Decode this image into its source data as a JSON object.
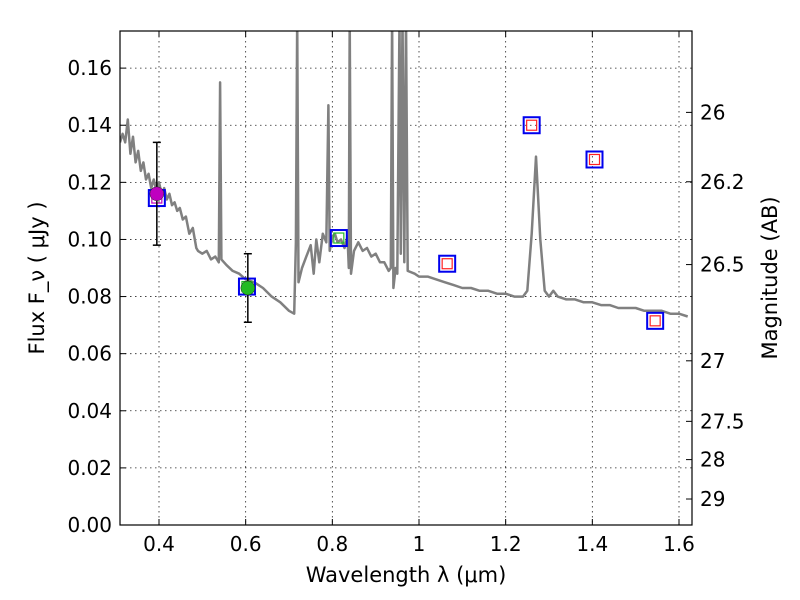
{
  "chart_data": {
    "type": "scatter",
    "title": "",
    "xlabel": "Wavelength  λ (μm)",
    "ylabel": "Flux  F_ν  ( μJy )",
    "ylabel_right": "Magnitude (AB)",
    "xlim": [
      0.31,
      1.63
    ],
    "ylim": [
      0.0,
      0.173
    ],
    "grid": true,
    "x_ticks": [
      "0.4",
      "0.6",
      "0.8",
      "1",
      "1.2",
      "1.4",
      "1.6"
    ],
    "y_ticks": [
      "0.00",
      "0.02",
      "0.04",
      "0.06",
      "0.08",
      "0.10",
      "0.12",
      "0.14",
      "0.16"
    ],
    "right_ticks": [
      {
        "label": "26",
        "flux": 0.1445
      },
      {
        "label": "26.2",
        "flux": 0.1202
      },
      {
        "label": "26.5",
        "flux": 0.0912
      },
      {
        "label": "27",
        "flux": 0.0575
      },
      {
        "label": "27.5",
        "flux": 0.0363
      },
      {
        "label": "28",
        "flux": 0.0229
      },
      {
        "label": "29",
        "flux": 0.0091
      }
    ],
    "observed": [
      {
        "x": 0.395,
        "y": 0.116,
        "err": 0.018,
        "color": "#bf00bf"
      },
      {
        "x": 0.605,
        "y": 0.083,
        "err": 0.012,
        "color": "#22bb22"
      }
    ],
    "model_boxes": [
      {
        "x": 0.395,
        "y": 0.1145,
        "inner": "#bf00bf"
      },
      {
        "x": 0.603,
        "y": 0.0835,
        "inner": "#22bb22"
      },
      {
        "x": 0.815,
        "y": 0.1005,
        "inner": "#22bb22"
      },
      {
        "x": 1.065,
        "y": 0.0915,
        "inner": "#ff2222"
      },
      {
        "x": 1.26,
        "y": 0.14,
        "inner": "#ff2222"
      },
      {
        "x": 1.405,
        "y": 0.128,
        "inner": "#ff2222"
      },
      {
        "x": 1.545,
        "y": 0.0715,
        "inner": "#ff2222"
      }
    ],
    "sed": [
      [
        0.31,
        0.134
      ],
      [
        0.316,
        0.137
      ],
      [
        0.322,
        0.134
      ],
      [
        0.328,
        0.142
      ],
      [
        0.334,
        0.13
      ],
      [
        0.34,
        0.136
      ],
      [
        0.346,
        0.127
      ],
      [
        0.352,
        0.131
      ],
      [
        0.358,
        0.124
      ],
      [
        0.364,
        0.127
      ],
      [
        0.37,
        0.121
      ],
      [
        0.376,
        0.123
      ],
      [
        0.382,
        0.118
      ],
      [
        0.388,
        0.121
      ],
      [
        0.394,
        0.117
      ],
      [
        0.4,
        0.12
      ],
      [
        0.406,
        0.116
      ],
      [
        0.412,
        0.118
      ],
      [
        0.418,
        0.114
      ],
      [
        0.424,
        0.116
      ],
      [
        0.43,
        0.112
      ],
      [
        0.436,
        0.113
      ],
      [
        0.442,
        0.11
      ],
      [
        0.448,
        0.111
      ],
      [
        0.455,
        0.107
      ],
      [
        0.462,
        0.108
      ],
      [
        0.47,
        0.102
      ],
      [
        0.478,
        0.104
      ],
      [
        0.486,
        0.097
      ],
      [
        0.49,
        0.096
      ],
      [
        0.5,
        0.095
      ],
      [
        0.51,
        0.096
      ],
      [
        0.52,
        0.093
      ],
      [
        0.53,
        0.094
      ],
      [
        0.538,
        0.092
      ],
      [
        0.541,
        0.155
      ],
      [
        0.544,
        0.093
      ],
      [
        0.556,
        0.091
      ],
      [
        0.57,
        0.089
      ],
      [
        0.585,
        0.088
      ],
      [
        0.6,
        0.086
      ],
      [
        0.62,
        0.085
      ],
      [
        0.64,
        0.083
      ],
      [
        0.66,
        0.08
      ],
      [
        0.68,
        0.078
      ],
      [
        0.7,
        0.075
      ],
      [
        0.712,
        0.074
      ],
      [
        0.716,
        0.099
      ],
      [
        0.719,
        0.178
      ],
      [
        0.722,
        0.085
      ],
      [
        0.73,
        0.09
      ],
      [
        0.74,
        0.094
      ],
      [
        0.75,
        0.098
      ],
      [
        0.757,
        0.088
      ],
      [
        0.763,
        0.1
      ],
      [
        0.77,
        0.092
      ],
      [
        0.778,
        0.102
      ],
      [
        0.786,
        0.099
      ],
      [
        0.791,
        0.147
      ],
      [
        0.794,
        0.096
      ],
      [
        0.8,
        0.101
      ],
      [
        0.806,
        0.102
      ],
      [
        0.812,
        0.099
      ],
      [
        0.82,
        0.1
      ],
      [
        0.828,
        0.097
      ],
      [
        0.835,
        0.101
      ],
      [
        0.838,
        0.09
      ],
      [
        0.84,
        0.178
      ],
      [
        0.843,
        0.088
      ],
      [
        0.85,
        0.096
      ],
      [
        0.86,
        0.099
      ],
      [
        0.87,
        0.096
      ],
      [
        0.88,
        0.097
      ],
      [
        0.89,
        0.094
      ],
      [
        0.9,
        0.095
      ],
      [
        0.91,
        0.092
      ],
      [
        0.92,
        0.092
      ],
      [
        0.93,
        0.089
      ],
      [
        0.935,
        0.09
      ],
      [
        0.938,
        0.178
      ],
      [
        0.941,
        0.083
      ],
      [
        0.946,
        0.09
      ],
      [
        0.95,
        0.088
      ],
      [
        0.955,
        0.178
      ],
      [
        0.958,
        0.095
      ],
      [
        0.962,
        0.178
      ],
      [
        0.966,
        0.092
      ],
      [
        0.97,
        0.178
      ],
      [
        0.974,
        0.089
      ],
      [
        0.99,
        0.088
      ],
      [
        1.0,
        0.087
      ],
      [
        1.02,
        0.087
      ],
      [
        1.04,
        0.086
      ],
      [
        1.06,
        0.085
      ],
      [
        1.08,
        0.084
      ],
      [
        1.1,
        0.083
      ],
      [
        1.12,
        0.083
      ],
      [
        1.14,
        0.082
      ],
      [
        1.16,
        0.082
      ],
      [
        1.18,
        0.081
      ],
      [
        1.2,
        0.081
      ],
      [
        1.22,
        0.08
      ],
      [
        1.24,
        0.08
      ],
      [
        1.25,
        0.082
      ],
      [
        1.26,
        0.102
      ],
      [
        1.27,
        0.129
      ],
      [
        1.28,
        0.1
      ],
      [
        1.29,
        0.082
      ],
      [
        1.3,
        0.08
      ],
      [
        1.31,
        0.082
      ],
      [
        1.32,
        0.08
      ],
      [
        1.34,
        0.079
      ],
      [
        1.36,
        0.079
      ],
      [
        1.38,
        0.078
      ],
      [
        1.4,
        0.078
      ],
      [
        1.42,
        0.077
      ],
      [
        1.44,
        0.077
      ],
      [
        1.46,
        0.076
      ],
      [
        1.48,
        0.076
      ],
      [
        1.5,
        0.076
      ],
      [
        1.52,
        0.075
      ],
      [
        1.54,
        0.075
      ],
      [
        1.56,
        0.075
      ],
      [
        1.58,
        0.074
      ],
      [
        1.6,
        0.074
      ],
      [
        1.62,
        0.073
      ]
    ],
    "colors": {
      "sed": "#808080",
      "box": "#0000ee",
      "errorbar": "#000000"
    }
  }
}
